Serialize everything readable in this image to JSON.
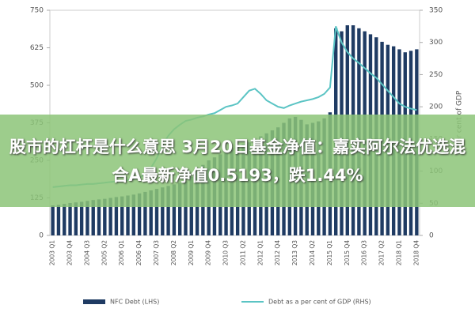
{
  "chart_data": {
    "type": "bar_line",
    "y_label_right": "Per cent of GDP",
    "categories": [
      "2003 Q1",
      null,
      null,
      "2003 Q4",
      null,
      null,
      "2004 Q3",
      null,
      null,
      "2005 Q2",
      null,
      null,
      "2006 Q1",
      null,
      null,
      "2006 Q4",
      null,
      null,
      "2007 Q3",
      null,
      null,
      "2008 Q2",
      null,
      null,
      "2009 Q1",
      null,
      null,
      "2009 Q4",
      null,
      null,
      "2010 Q3",
      null,
      null,
      "2011 Q2",
      null,
      null,
      "2012 Q1",
      null,
      null,
      "2012 Q4",
      null,
      null,
      "2013 Q3",
      null,
      null,
      "2014 Q2",
      null,
      null,
      "2015 Q1",
      null,
      null,
      "2015 Q4",
      null,
      null,
      "2016 Q3",
      null,
      null,
      "2017 Q2",
      null,
      null,
      "2018 Q1",
      null,
      null,
      "2018 Q4"
    ],
    "series": [
      {
        "name": "NFC Debt (LHS)",
        "color": "#1f3b63",
        "type": "bar",
        "values": [
          100,
          102,
          105,
          108,
          110,
          112,
          115,
          118,
          120,
          122,
          125,
          128,
          130,
          133,
          136,
          140,
          145,
          150,
          155,
          160,
          165,
          170,
          175,
          180,
          195,
          215,
          235,
          250,
          260,
          270,
          280,
          290,
          300,
          305,
          310,
          320,
          330,
          340,
          350,
          360,
          375,
          390,
          395,
          385,
          370,
          375,
          380,
          390,
          410,
          690,
          680,
          700,
          700,
          690,
          680,
          670,
          660,
          645,
          635,
          630,
          620,
          610,
          615,
          620
        ]
      },
      {
        "name": "Debt as a per cent of GDP (RHS)",
        "color": "#5bc4c4",
        "type": "line",
        "axis": "y2",
        "values": [
          75,
          76,
          77,
          78,
          78,
          79,
          80,
          80,
          81,
          82,
          83,
          84,
          85,
          86,
          88,
          90,
          95,
          105,
          120,
          140,
          155,
          165,
          172,
          178,
          180,
          183,
          185,
          188,
          190,
          195,
          200,
          202,
          205,
          215,
          225,
          228,
          220,
          210,
          205,
          200,
          198,
          202,
          205,
          208,
          210,
          212,
          215,
          220,
          230,
          325,
          300,
          285,
          275,
          268,
          260,
          252,
          245,
          235,
          225,
          215,
          205,
          200,
          197,
          195
        ]
      }
    ],
    "ylim": [
      0,
      750
    ],
    "yticks": [
      0,
      125,
      250,
      375,
      500,
      625,
      750
    ],
    "y2lim": [
      0,
      350
    ],
    "y2ticks": [
      0,
      50,
      100,
      150,
      200,
      250,
      300,
      350
    ]
  },
  "overlay_text": "股市的杠杆是什么意思 3月20日基金净值：嘉实阿尔法优选混合A最新净值0.5193，跌1.44%"
}
